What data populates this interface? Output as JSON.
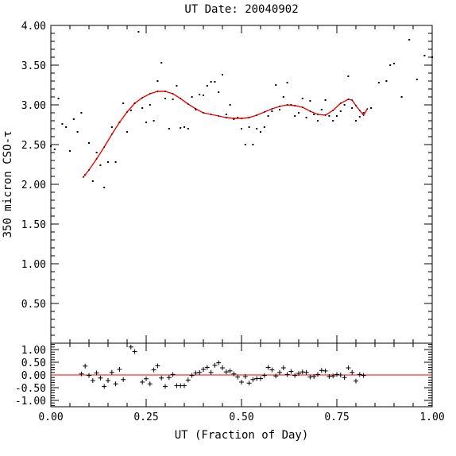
{
  "chart_data": [
    {
      "type": "scatter",
      "title": "UT Date: 20040902",
      "ylabel": "350 micron CSO-τ",
      "xlim": [
        0.0,
        1.0
      ],
      "ylim": [
        0.0,
        4.0
      ],
      "yticks": [
        "0.50",
        "1.00",
        "1.50",
        "2.00",
        "2.50",
        "3.00",
        "3.50",
        "4.00"
      ],
      "grid": false,
      "series": [
        {
          "kind": "points",
          "color": "#000000",
          "x": [
            0.0,
            0.01,
            0.02,
            0.03,
            0.04,
            0.05,
            0.06,
            0.07,
            0.08,
            0.09,
            0.1,
            0.11,
            0.12,
            0.13,
            0.14,
            0.15,
            0.16,
            0.17,
            0.18,
            0.19,
            0.2,
            0.21,
            0.22,
            0.23,
            0.24,
            0.25,
            0.26,
            0.27,
            0.28,
            0.29,
            0.3,
            0.31,
            0.32,
            0.33,
            0.34,
            0.35,
            0.36,
            0.37,
            0.38,
            0.39,
            0.4,
            0.41,
            0.42,
            0.43,
            0.44,
            0.45,
            0.46,
            0.47,
            0.48,
            0.49,
            0.5,
            0.51,
            0.52,
            0.53,
            0.54,
            0.55,
            0.56,
            0.57,
            0.58,
            0.59,
            0.6,
            0.61,
            0.62,
            0.63,
            0.64,
            0.65,
            0.66,
            0.67,
            0.68,
            0.69,
            0.7,
            0.71,
            0.72,
            0.73,
            0.74,
            0.75,
            0.76,
            0.77,
            0.78,
            0.79,
            0.8,
            0.81,
            0.82,
            0.84,
            0.86,
            0.88,
            0.89,
            0.9,
            0.92,
            0.94,
            0.96,
            0.98,
            1.0
          ],
          "y": [
            2.48,
            2.44,
            3.08,
            2.76,
            2.72,
            2.42,
            2.82,
            2.66,
            2.9,
            2.12,
            2.52,
            2.04,
            2.4,
            2.24,
            1.96,
            2.28,
            2.72,
            2.28,
            2.78,
            3.02,
            2.66,
            2.93,
            3.02,
            3.92,
            2.96,
            2.78,
            3.0,
            2.8,
            3.3,
            3.53,
            3.08,
            2.7,
            3.07,
            3.24,
            2.71,
            2.72,
            2.7,
            3.1,
            2.94,
            3.13,
            3.12,
            3.24,
            3.29,
            3.29,
            3.16,
            3.38,
            2.88,
            3.0,
            2.82,
            2.84,
            2.7,
            2.5,
            2.72,
            2.5,
            2.7,
            2.66,
            2.72,
            2.86,
            2.92,
            3.25,
            2.94,
            3.1,
            3.28,
            3.0,
            2.86,
            2.9,
            3.08,
            2.84,
            3.05,
            2.88,
            2.8,
            2.94,
            3.06,
            2.86,
            2.8,
            2.86,
            2.92,
            3.0,
            3.36,
            2.96,
            2.8,
            2.85,
            2.9,
            2.96,
            3.28,
            3.3,
            3.5,
            3.52,
            3.1,
            3.82,
            3.32,
            3.62,
            3.6
          ]
        },
        {
          "kind": "fit",
          "color": "#ff0000",
          "x": [
            0.085,
            0.1,
            0.12,
            0.14,
            0.16,
            0.18,
            0.2,
            0.22,
            0.24,
            0.26,
            0.28,
            0.3,
            0.32,
            0.34,
            0.36,
            0.38,
            0.4,
            0.42,
            0.44,
            0.46,
            0.48,
            0.5,
            0.52,
            0.54,
            0.56,
            0.58,
            0.6,
            0.62,
            0.64,
            0.66,
            0.68,
            0.7,
            0.72,
            0.74,
            0.76,
            0.78,
            0.79,
            0.8,
            0.81,
            0.82,
            0.83
          ],
          "y": [
            2.09,
            2.18,
            2.32,
            2.47,
            2.63,
            2.78,
            2.91,
            3.02,
            3.09,
            3.14,
            3.17,
            3.17,
            3.14,
            3.08,
            3.01,
            2.95,
            2.9,
            2.88,
            2.86,
            2.84,
            2.83,
            2.83,
            2.84,
            2.87,
            2.91,
            2.95,
            2.98,
            3.0,
            2.99,
            2.97,
            2.92,
            2.88,
            2.87,
            2.93,
            3.02,
            3.07,
            3.06,
            2.99,
            2.93,
            2.87,
            2.95
          ]
        }
      ]
    },
    {
      "type": "scatter",
      "xlabel": "UT (Fraction of Day)",
      "xlim": [
        0.0,
        1.0
      ],
      "ylim": [
        -1.25,
        1.25
      ],
      "xticks": [
        "0.00",
        "0.25",
        "0.50",
        "0.75",
        "1.00"
      ],
      "yticks": [
        "-1.00",
        "-0.50",
        "0.00",
        "0.50",
        "1.00"
      ],
      "grid": false,
      "reference_line": {
        "y": 0.0,
        "color": "#ff0000"
      },
      "series": [
        {
          "kind": "residuals",
          "color": "#000000",
          "x": [
            0.08,
            0.09,
            0.1,
            0.11,
            0.12,
            0.13,
            0.14,
            0.15,
            0.16,
            0.17,
            0.18,
            0.19,
            0.21,
            0.22,
            0.24,
            0.25,
            0.26,
            0.27,
            0.28,
            0.29,
            0.3,
            0.31,
            0.32,
            0.33,
            0.34,
            0.35,
            0.36,
            0.37,
            0.38,
            0.39,
            0.4,
            0.41,
            0.42,
            0.43,
            0.44,
            0.45,
            0.46,
            0.47,
            0.48,
            0.49,
            0.5,
            0.51,
            0.52,
            0.53,
            0.54,
            0.55,
            0.56,
            0.57,
            0.58,
            0.59,
            0.6,
            0.61,
            0.62,
            0.63,
            0.64,
            0.65,
            0.66,
            0.67,
            0.68,
            0.69,
            0.7,
            0.71,
            0.72,
            0.73,
            0.74,
            0.75,
            0.76,
            0.77,
            0.78,
            0.79,
            0.8,
            0.81,
            0.82
          ],
          "y": [
            0.04,
            0.35,
            -0.02,
            -0.22,
            0.08,
            -0.12,
            -0.45,
            -0.22,
            0.1,
            -0.35,
            0.22,
            -0.18,
            1.1,
            0.92,
            -0.28,
            -0.15,
            -0.35,
            0.2,
            0.36,
            -0.12,
            -0.45,
            -0.1,
            0.02,
            -0.42,
            -0.42,
            -0.42,
            -0.2,
            -0.02,
            0.08,
            0.1,
            0.22,
            0.3,
            0.1,
            0.38,
            0.48,
            0.28,
            0.12,
            0.16,
            0.04,
            -0.08,
            -0.28,
            -0.06,
            -0.32,
            -0.18,
            -0.14,
            -0.14,
            -0.02,
            0.3,
            0.2,
            -0.04,
            0.1,
            0.28,
            0.02,
            0.14,
            -0.02,
            0.06,
            0.12,
            0.1,
            -0.08,
            -0.06,
            0.02,
            0.18,
            0.16,
            -0.06,
            -0.04,
            0.02,
            0.0,
            -0.1,
            0.28,
            0.1,
            -0.24,
            0.02,
            -0.02
          ]
        }
      ]
    }
  ]
}
